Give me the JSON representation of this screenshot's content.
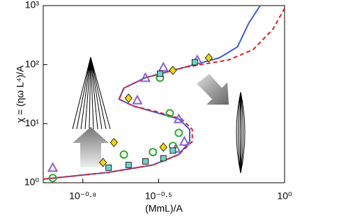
{
  "chart_data": {
    "type": "scatter-line",
    "xlabel": "(MmL)/A",
    "ylabel": "χ = (ηω L⁴)/A",
    "log_x": true,
    "log_y": true,
    "xlim": [
      0.11,
      1
    ],
    "ylim": [
      1,
      1000
    ],
    "xticks": [
      {
        "value": 0.158,
        "label": "10⁻⁰·⁸"
      },
      {
        "value": 0.316,
        "label": "10⁻⁰·⁵"
      },
      {
        "value": 1,
        "label": "10⁰"
      }
    ],
    "yticks": [
      {
        "value": 1,
        "label": "10⁰"
      },
      {
        "value": 10,
        "label": "10¹"
      },
      {
        "value": 100,
        "label": "10²"
      },
      {
        "value": 1000,
        "label": "10³"
      }
    ],
    "lines": [
      {
        "color": "#3b5bd6",
        "dash": false,
        "x": [
          0.11,
          0.2,
          0.3,
          0.38,
          0.42,
          0.42,
          0.38,
          0.3,
          0.25,
          0.22,
          0.23,
          0.28,
          0.4,
          0.55,
          0.65,
          0.72,
          0.8
        ],
        "y": [
          1.15,
          1.5,
          2,
          3,
          5,
          8,
          12,
          16,
          20,
          26,
          40,
          60,
          90,
          130,
          200,
          500,
          1000
        ]
      },
      {
        "color": "#e02020",
        "dash": true,
        "x": [
          0.11,
          0.2,
          0.3,
          0.38,
          0.43,
          0.43,
          0.39,
          0.31,
          0.25,
          0.22,
          0.23,
          0.28,
          0.4,
          0.6,
          0.75,
          0.9,
          1.0
        ],
        "y": [
          1.15,
          1.5,
          2,
          3,
          5,
          8,
          12,
          16,
          20,
          26,
          40,
          60,
          90,
          120,
          180,
          400,
          900
        ]
      }
    ],
    "series": [
      {
        "marker": "triangle",
        "color": "#8a5fd0",
        "x": [
          0.12,
          0.37,
          0.4,
          0.38,
          0.26,
          0.28,
          0.33,
          0.45
        ],
        "y": [
          1.8,
          3.8,
          5,
          12,
          25,
          60,
          90,
          120
        ]
      },
      {
        "marker": "circle",
        "color": "#2ea82e",
        "x": [
          0.12,
          0.23,
          0.3,
          0.36,
          0.38,
          0.35,
          0.32
        ],
        "y": [
          1.2,
          3,
          3.3,
          4.2,
          7,
          15,
          60
        ]
      },
      {
        "marker": "diamond",
        "color": "#f0d800",
        "x": [
          0.19,
          0.21,
          0.33,
          0.24,
          0.36,
          0.5
        ],
        "y": [
          2.2,
          4.8,
          4,
          27,
          80,
          130
        ]
      },
      {
        "marker": "square",
        "color": "#6fd0c8",
        "x": [
          0.2,
          0.24,
          0.28,
          0.33,
          0.36,
          0.32,
          0.44
        ],
        "y": [
          1.8,
          2,
          2.3,
          2.6,
          3.5,
          70,
          110
        ]
      }
    ]
  }
}
